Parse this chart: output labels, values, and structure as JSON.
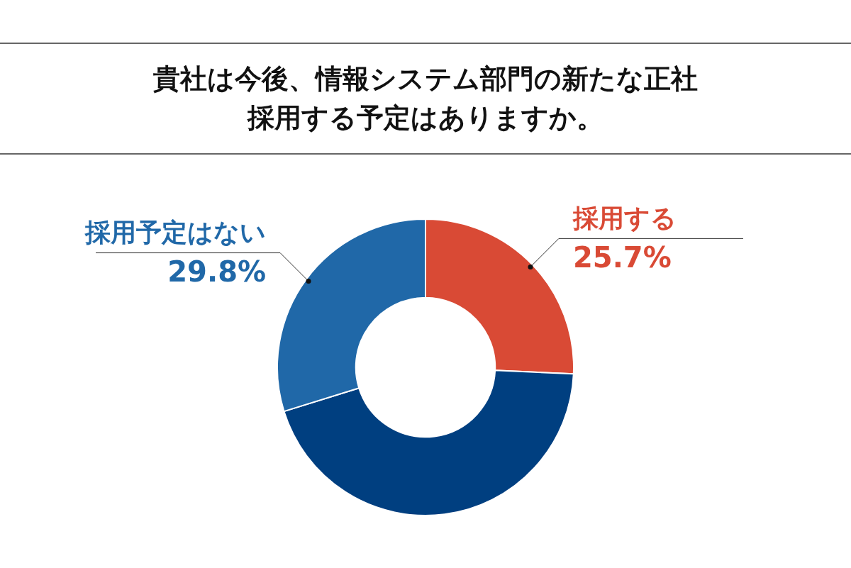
{
  "chart_data": {
    "type": "donut",
    "title": "貴社は今後、情報システム部門の新たな正社採用する予定はありますか。",
    "categories": [
      "採用する",
      null,
      "採用予定はない"
    ],
    "values": [
      25.7,
      44.5,
      29.8
    ],
    "colors": [
      "#d94a35",
      "#003f80",
      "#2068a8"
    ],
    "value_labels": [
      "25.7%",
      null,
      "29.8%"
    ],
    "legend": false
  }
}
